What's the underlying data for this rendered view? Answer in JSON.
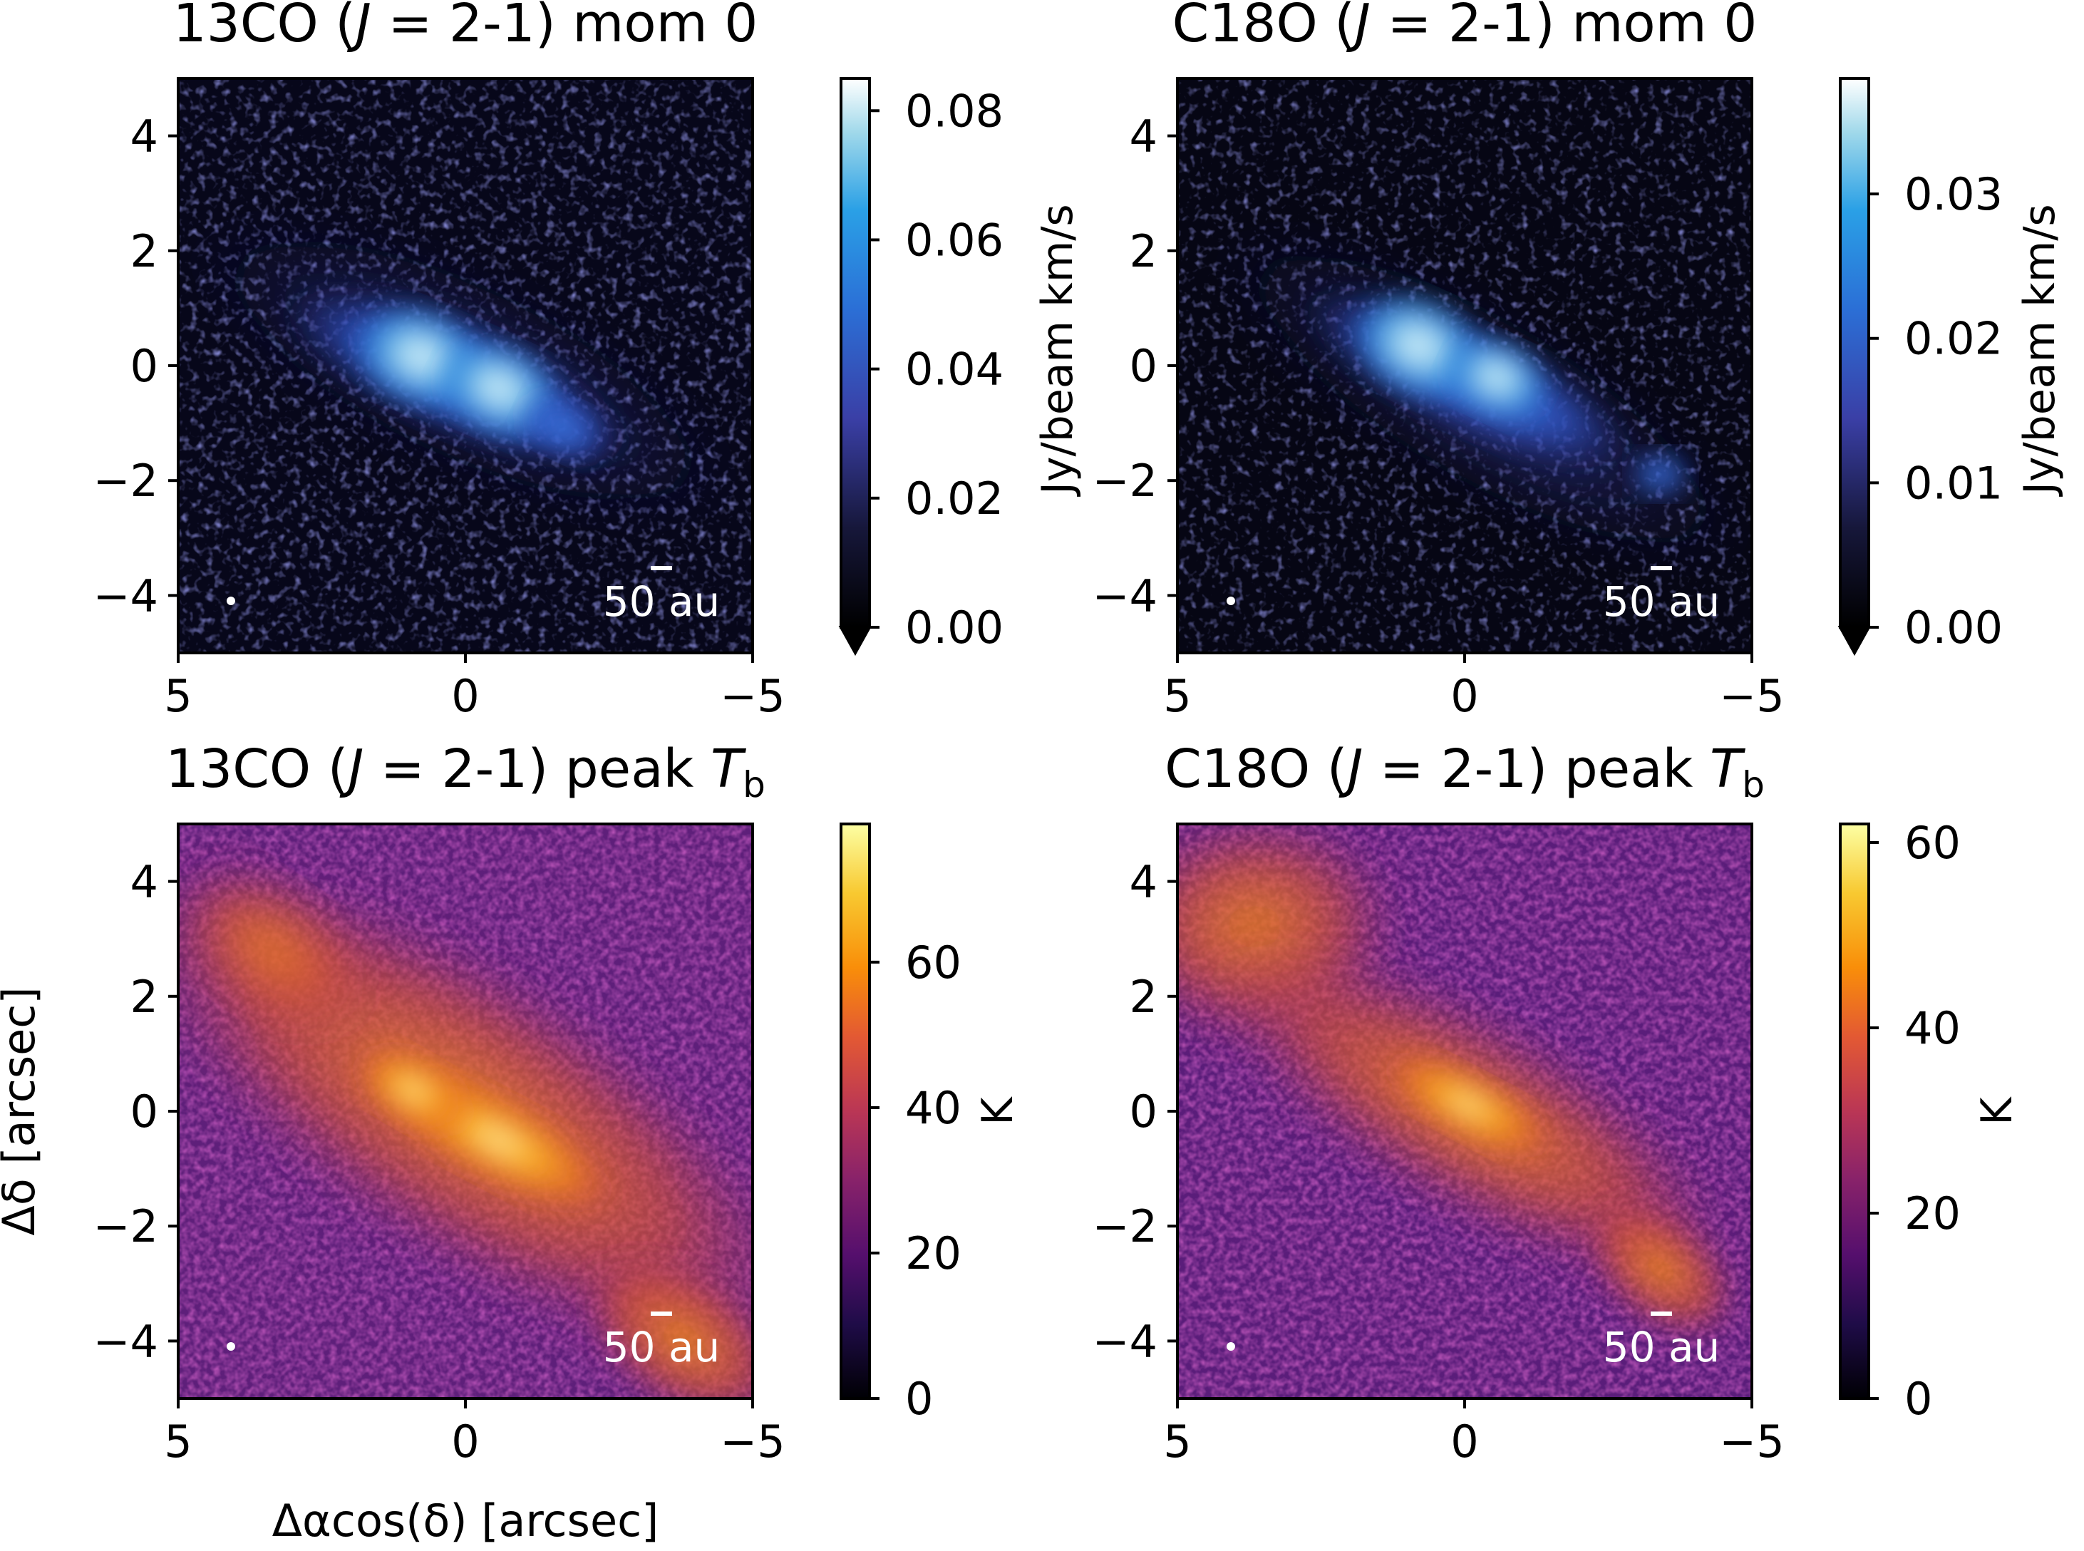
{
  "figure": {
    "xlabel": "Δαcos(δ) [arcsec]",
    "ylabel": "Δδ [arcsec]"
  },
  "chart_data": [
    {
      "type": "heatmap",
      "title": "13CO (J = 2-1) mom 0",
      "title_parts": {
        "molecule": "13CO (",
        "J": "J",
        "mid": " = 2-1) ",
        "kind": "mom 0"
      },
      "xlim": [
        5,
        -5
      ],
      "ylim": [
        -5,
        5
      ],
      "x_ticks": [
        "5",
        "0",
        "−5"
      ],
      "x_tick_values": [
        5,
        0,
        -5
      ],
      "y_ticks": [
        "4",
        "2",
        "0",
        "−2",
        "−4"
      ],
      "y_tick_values": [
        4,
        2,
        0,
        -2,
        -4
      ],
      "colormap": "blue-white (mom 0)",
      "colorbar": {
        "label": "Jy/beam km/s",
        "min": 0,
        "max": 0.085,
        "ticks": [
          "0.00",
          "0.02",
          "0.04",
          "0.06",
          "0.08"
        ],
        "tick_values": [
          0,
          0.02,
          0.04,
          0.06,
          0.08
        ],
        "extend": "min"
      },
      "scale_bar_label": "50 au",
      "peaks": [
        [
          0.8,
          0.1
        ],
        [
          -0.5,
          -0.3
        ]
      ],
      "emission_extent": "elongated along PA ~ -70° through center"
    },
    {
      "type": "heatmap",
      "title": "C18O (J = 2-1) mom 0",
      "title_parts": {
        "molecule": "C18O (",
        "J": "J",
        "mid": " = 2-1) ",
        "kind": "mom 0"
      },
      "xlim": [
        5,
        -5
      ],
      "ylim": [
        -5,
        5
      ],
      "x_ticks": [
        "5",
        "0",
        "−5"
      ],
      "x_tick_values": [
        5,
        0,
        -5
      ],
      "y_ticks": [
        "4",
        "2",
        "0",
        "−2",
        "−4"
      ],
      "y_tick_values": [
        4,
        2,
        0,
        -2,
        -4
      ],
      "colormap": "blue-white (mom 0)",
      "colorbar": {
        "label": "Jy/beam km/s",
        "min": 0,
        "max": 0.038,
        "ticks": [
          "0.00",
          "0.01",
          "0.02",
          "0.03"
        ],
        "tick_values": [
          0,
          0.01,
          0.02,
          0.03
        ],
        "extend": "min"
      },
      "scale_bar_label": "50 au",
      "peaks": [
        [
          1.0,
          0.3
        ],
        [
          -0.6,
          -0.2
        ]
      ],
      "emission_extent": "elongated along PA ~ -70° through center"
    },
    {
      "type": "heatmap",
      "title": "13CO (J = 2-1) peak T_b",
      "title_parts": {
        "molecule": "13CO (",
        "J": "J",
        "mid": " = 2-1) peak ",
        "T": "T",
        "sub": "b"
      },
      "xlim": [
        5,
        -5
      ],
      "ylim": [
        -5,
        5
      ],
      "x_ticks": [
        "5",
        "0",
        "−5"
      ],
      "x_tick_values": [
        5,
        0,
        -5
      ],
      "y_ticks": [
        "4",
        "2",
        "0",
        "−2",
        "−4"
      ],
      "y_tick_values": [
        4,
        2,
        0,
        -2,
        -4
      ],
      "colormap": "inferno",
      "colorbar": {
        "label": "K",
        "min": 0,
        "max": 79,
        "ticks": [
          "0",
          "20",
          "40",
          "60"
        ],
        "tick_values": [
          0,
          20,
          40,
          60
        ]
      },
      "scale_bar_label": "50 au",
      "peaks": [
        [
          -0.6,
          -0.5
        ]
      ],
      "emission_extent": "broad diagonal band from upper-left to lower-right"
    },
    {
      "type": "heatmap",
      "title": "C18O (J = 2-1) peak T_b",
      "title_parts": {
        "molecule": "C18O (",
        "J": "J",
        "mid": " = 2-1) peak ",
        "T": "T",
        "sub": "b"
      },
      "xlim": [
        5,
        -5
      ],
      "ylim": [
        -5,
        5
      ],
      "x_ticks": [
        "5",
        "0",
        "−5"
      ],
      "x_tick_values": [
        5,
        0,
        -5
      ],
      "y_ticks": [
        "4",
        "2",
        "0",
        "−2",
        "−4"
      ],
      "y_tick_values": [
        4,
        2,
        0,
        -2,
        -4
      ],
      "colormap": "inferno",
      "colorbar": {
        "label": "K",
        "min": 0,
        "max": 62,
        "ticks": [
          "0",
          "20",
          "40",
          "60"
        ],
        "tick_values": [
          0,
          20,
          40,
          60
        ]
      },
      "scale_bar_label": "50 au",
      "peaks": [
        [
          -0.5,
          -0.3
        ]
      ],
      "emission_extent": "diagonal band from upper-left to lower-right"
    }
  ]
}
